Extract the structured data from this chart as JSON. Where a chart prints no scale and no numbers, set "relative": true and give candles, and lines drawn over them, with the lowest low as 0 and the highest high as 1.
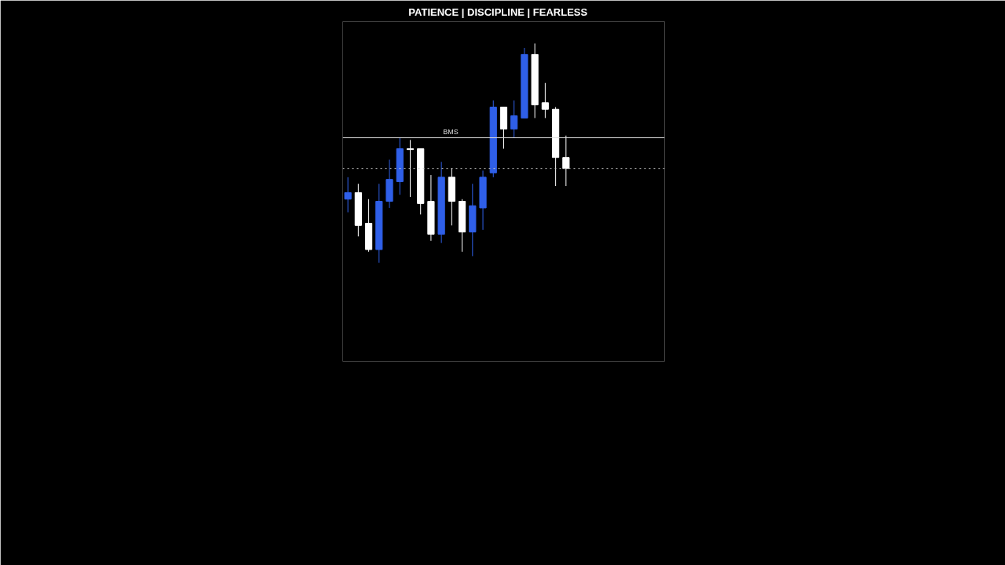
{
  "chart_data": {
    "type": "candlestick",
    "subtitle": "PATIENCE  |  DISCIPLINE  |  FEARLESS",
    "relative": true,
    "categories": [
      null,
      null,
      null,
      null,
      null,
      null,
      null,
      null,
      null,
      null,
      null,
      null,
      null,
      null,
      null,
      null,
      null,
      null,
      null,
      null,
      null,
      null
    ],
    "ohlc": [
      [
        0.29,
        0.39,
        0.23,
        0.32
      ],
      [
        0.32,
        0.36,
        0.12,
        0.17
      ],
      [
        0.18,
        0.29,
        0.05,
        0.06
      ],
      [
        0.06,
        0.36,
        0,
        0.28
      ],
      [
        0.28,
        0.47,
        0.25,
        0.38
      ],
      [
        0.37,
        0.57,
        0.31,
        0.52
      ],
      [
        0.52,
        0.56,
        0.3,
        0.52
      ],
      [
        0.52,
        0.52,
        0.22,
        0.27
      ],
      [
        0.28,
        0.4,
        0.1,
        0.13
      ],
      [
        0.13,
        0.46,
        0.09,
        0.39
      ],
      [
        0.39,
        0.43,
        0.17,
        0.28
      ],
      [
        0.28,
        0.29,
        0.05,
        0.14
      ],
      [
        0.14,
        0.36,
        0.03,
        0.26
      ],
      [
        0.25,
        0.42,
        0.15,
        0.39
      ],
      [
        0.41,
        0.74,
        0.39,
        0.71
      ],
      [
        0.71,
        0.71,
        0.52,
        0.61
      ],
      [
        0.61,
        0.74,
        0.57,
        0.67
      ],
      [
        0.66,
        0.98,
        0.66,
        0.95
      ],
      [
        0.95,
        1.0,
        0.66,
        0.72
      ],
      [
        0.73,
        0.82,
        0.66,
        0.7
      ],
      [
        0.7,
        0.71,
        0.35,
        0.48
      ],
      [
        0.48,
        0.58,
        0.35,
        0.43
      ]
    ],
    "colors": [
      "#2f5fe8",
      "#ffffff",
      "#ffffff",
      "#2f5fe8",
      "#2f5fe8",
      "#2f5fe8",
      "#ffffff",
      "#ffffff",
      "#ffffff",
      "#2f5fe8",
      "#ffffff",
      "#ffffff",
      "#2f5fe8",
      "#2f5fe8",
      "#2f5fe8",
      "#ffffff",
      "#2f5fe8",
      "#2f5fe8",
      "#ffffff",
      "#ffffff",
      "#ffffff",
      "#ffffff"
    ],
    "ref_lines": [
      {
        "axis": "y",
        "value": 0.57,
        "label": "BMS",
        "color": "#dddddd",
        "line_style": "solid"
      },
      {
        "axis": "y",
        "value": 0.43,
        "color": "#cccccc",
        "line_style": "dotted"
      }
    ],
    "grid": false
  }
}
